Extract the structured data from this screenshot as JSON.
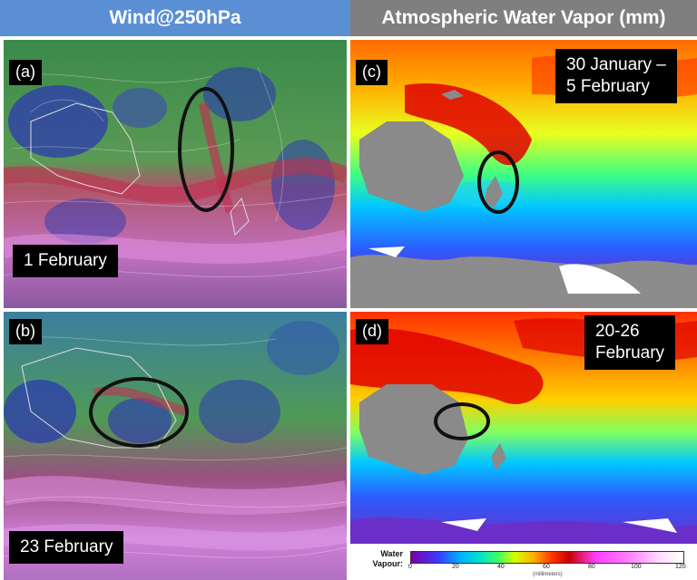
{
  "headers": {
    "left": "Wind@250hPa",
    "right": "Atmospheric Water Vapor (mm)"
  },
  "panels": {
    "a": {
      "label": "(a)",
      "date": "1 February"
    },
    "b": {
      "label": "(b)",
      "date": "23 February"
    },
    "c": {
      "label": "(c)",
      "date_line1": "30 January –",
      "date_line2": "5 February"
    },
    "d": {
      "label": "(d)",
      "date_line1": "20-26",
      "date_line2": "February"
    }
  },
  "colorbar": {
    "label_line1": "Water",
    "label_line2": "Vapour:",
    "ticks": [
      "0",
      "20",
      "40",
      "60",
      "80",
      "100",
      "120"
    ],
    "units": "(millimeters)"
  },
  "colors": {
    "header_left": "#5b8fd4",
    "header_right": "#7f7f7f",
    "wind_blue": "#2a3aa8",
    "wind_green": "#3f8f4a",
    "wind_magenta": "#c060c0",
    "vapor_red": "#e00000",
    "vapor_cyan": "#00c8ff",
    "vapor_purple": "#6a2fc8"
  }
}
